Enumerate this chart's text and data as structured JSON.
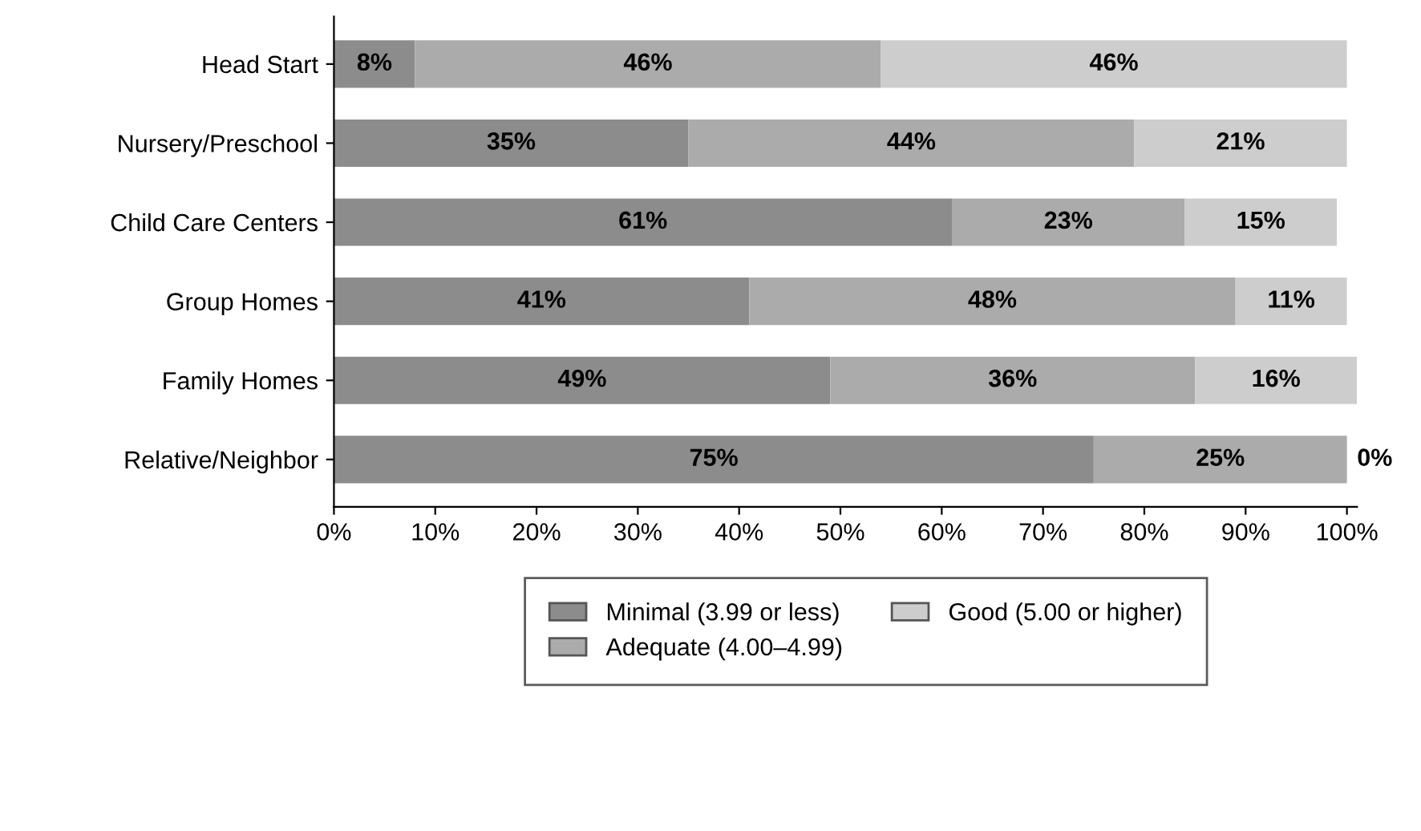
{
  "chart_data": {
    "type": "bar",
    "orientation": "horizontal",
    "stacked": true,
    "categories": [
      "Head Start",
      "Nursery/Preschool",
      "Child Care Centers",
      "Group Homes",
      "Family Homes",
      "Relative/Neighbor"
    ],
    "series": [
      {
        "name": "Minimal (3.99 or less)",
        "color": "#8c8c8c",
        "values": [
          8,
          35,
          61,
          41,
          49,
          75
        ],
        "value_labels": [
          "8%",
          "35%",
          "61%",
          "41%",
          "49%",
          "75%"
        ]
      },
      {
        "name": "Adequate (4.00–4.99)",
        "color": "#ababab",
        "values": [
          46,
          44,
          23,
          48,
          36,
          25
        ],
        "value_labels": [
          "46%",
          "44%",
          "23%",
          "48%",
          "36%",
          "25%"
        ]
      },
      {
        "name": "Good (5.00 or higher)",
        "color": "#cdcdcd",
        "values": [
          46,
          21,
          15,
          11,
          16,
          0
        ],
        "value_labels": [
          "46%",
          "21%",
          "15%",
          "11%",
          "16%",
          "0%"
        ]
      }
    ],
    "xlim": [
      0,
      101
    ],
    "xticks": [
      {
        "value": 0,
        "label": "0%"
      },
      {
        "value": 10,
        "label": "10%"
      },
      {
        "value": 20,
        "label": "20%"
      },
      {
        "value": 30,
        "label": "30%"
      },
      {
        "value": 40,
        "label": "40%"
      },
      {
        "value": 50,
        "label": "50%"
      },
      {
        "value": 60,
        "label": "60%"
      },
      {
        "value": 70,
        "label": "70%"
      },
      {
        "value": 80,
        "label": "80%"
      },
      {
        "value": 90,
        "label": "90%"
      },
      {
        "value": 100,
        "label": "100%"
      }
    ],
    "grid": false,
    "legend": "bottom"
  }
}
